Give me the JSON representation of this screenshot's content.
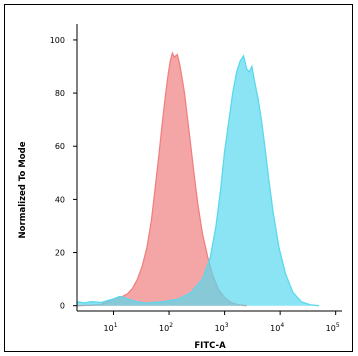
{
  "chart_data": {
    "type": "area",
    "title": "",
    "xlabel": "FITC-A",
    "ylabel": "Normalized To Mode",
    "x_scale": "log",
    "xlim": [
      2.2,
      130000
    ],
    "ylim": [
      -2,
      106
    ],
    "x_ticks": [
      {
        "value": 10,
        "base": "10",
        "exp": "1"
      },
      {
        "value": 100,
        "base": "10",
        "exp": "2"
      },
      {
        "value": 1000,
        "base": "10",
        "exp": "3"
      },
      {
        "value": 10000,
        "base": "10",
        "exp": "4"
      },
      {
        "value": 100000,
        "base": "10",
        "exp": "5"
      }
    ],
    "y_ticks": [
      "0",
      "20",
      "40",
      "60",
      "80",
      "100"
    ],
    "grid": false,
    "series": [
      {
        "color": "#f08080",
        "points": [
          [
            2.2,
            0
          ],
          [
            4,
            0.2
          ],
          [
            6,
            0.5
          ],
          [
            8,
            1.5
          ],
          [
            10,
            2.5
          ],
          [
            14,
            3.3
          ],
          [
            18,
            4.5
          ],
          [
            22,
            6.5
          ],
          [
            27,
            10
          ],
          [
            33,
            15
          ],
          [
            40,
            22
          ],
          [
            48,
            32
          ],
          [
            56,
            44
          ],
          [
            65,
            56
          ],
          [
            75,
            68
          ],
          [
            85,
            78
          ],
          [
            95,
            86
          ],
          [
            105,
            92
          ],
          [
            115,
            95
          ],
          [
            125,
            93.5
          ],
          [
            140,
            94.5
          ],
          [
            155,
            91
          ],
          [
            170,
            86
          ],
          [
            190,
            80
          ],
          [
            210,
            72
          ],
          [
            240,
            62
          ],
          [
            280,
            50
          ],
          [
            330,
            38
          ],
          [
            400,
            27
          ],
          [
            500,
            18
          ],
          [
            620,
            11
          ],
          [
            780,
            6
          ],
          [
            1000,
            3
          ],
          [
            1300,
            1.2
          ],
          [
            1800,
            0.3
          ],
          [
            2500,
            0
          ]
        ]
      },
      {
        "color": "#5ad8ee",
        "points": [
          [
            2.2,
            1.5
          ],
          [
            3,
            1
          ],
          [
            4,
            1.5
          ],
          [
            6,
            1.2
          ],
          [
            8,
            2
          ],
          [
            10,
            2.5
          ],
          [
            13,
            3.5
          ],
          [
            16,
            3
          ],
          [
            20,
            2.2
          ],
          [
            28,
            1.3
          ],
          [
            40,
            1
          ],
          [
            80,
            1.5
          ],
          [
            150,
            2.5
          ],
          [
            250,
            5
          ],
          [
            400,
            10
          ],
          [
            550,
            18
          ],
          [
            700,
            30
          ],
          [
            850,
            44
          ],
          [
            1000,
            58
          ],
          [
            1200,
            70
          ],
          [
            1400,
            80
          ],
          [
            1650,
            88
          ],
          [
            1900,
            92
          ],
          [
            2200,
            94
          ],
          [
            2500,
            89
          ],
          [
            2800,
            88
          ],
          [
            3100,
            90
          ],
          [
            3500,
            84
          ],
          [
            4000,
            78
          ],
          [
            4600,
            70
          ],
          [
            5300,
            60
          ],
          [
            6200,
            48
          ],
          [
            7500,
            35
          ],
          [
            9500,
            22
          ],
          [
            12500,
            12
          ],
          [
            17000,
            5
          ],
          [
            24000,
            1.5
          ],
          [
            35000,
            0.3
          ],
          [
            50000,
            0
          ]
        ]
      }
    ]
  }
}
